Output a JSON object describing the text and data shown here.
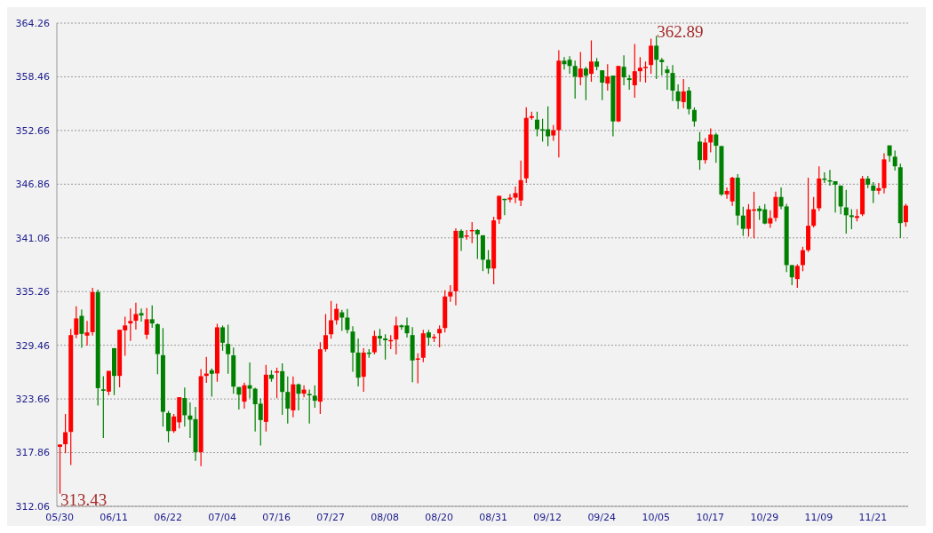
{
  "chart_data": {
    "type": "candlestick",
    "categories": [
      "05/30",
      null,
      null,
      null,
      null,
      null,
      null,
      null,
      null,
      null,
      "06/11",
      null,
      null,
      null,
      null,
      null,
      null,
      null,
      null,
      null,
      "06/22",
      null,
      null,
      null,
      null,
      null,
      null,
      null,
      null,
      null,
      "07/04",
      null,
      null,
      null,
      null,
      null,
      null,
      null,
      null,
      null,
      "07/16",
      null,
      null,
      null,
      null,
      null,
      null,
      null,
      null,
      null,
      "07/27",
      null,
      null,
      null,
      null,
      null,
      null,
      null,
      null,
      null,
      "08/08",
      null,
      null,
      null,
      null,
      null,
      null,
      null,
      null,
      null,
      "08/20",
      null,
      null,
      null,
      null,
      null,
      null,
      null,
      null,
      null,
      "08/31",
      null,
      null,
      null,
      null,
      null,
      null,
      null,
      null,
      null,
      "09/12",
      null,
      null,
      null,
      null,
      null,
      null,
      null,
      null,
      null,
      "09/24",
      null,
      null,
      null,
      null,
      null,
      null,
      null,
      null,
      null,
      "10/05",
      null,
      null,
      null,
      null,
      null,
      null,
      null,
      null,
      null,
      "10/17",
      null,
      null,
      null,
      null,
      null,
      null,
      null,
      null,
      null,
      "10/29",
      null,
      null,
      null,
      null,
      null,
      null,
      null,
      null,
      null,
      "11/09",
      null,
      null,
      null,
      null,
      null,
      null,
      null,
      null,
      null,
      "11/21",
      null,
      null,
      null,
      null,
      null,
      null
    ],
    "ohlc": [
      [
        318.49,
        318.74,
        313.43,
        318.74
      ],
      [
        318.77,
        322.05,
        317.8,
        320.07
      ],
      [
        320.1,
        331.23,
        316.51,
        330.56
      ],
      [
        330.6,
        333.68,
        330.22,
        332.36
      ],
      [
        332.64,
        333.31,
        329.18,
        330.69
      ],
      [
        330.5,
        332.08,
        329.43,
        330.85
      ],
      [
        330.88,
        335.67,
        330.5,
        335.2
      ],
      [
        335.2,
        335.48,
        322.94,
        324.83
      ],
      [
        324.7,
        326.12,
        319.44,
        324.54
      ],
      [
        324.45,
        326.69,
        324.07,
        326.69
      ],
      [
        329.15,
        329.15,
        324.07,
        326.15
      ],
      [
        326.15,
        331.13,
        324.92,
        331.13
      ],
      [
        331.07,
        332.55,
        328.33,
        331.6
      ],
      [
        331.82,
        333.43,
        329.93,
        332.08
      ],
      [
        332.11,
        334.06,
        331.16,
        332.83
      ],
      [
        332.93,
        333.43,
        332.01,
        332.68
      ],
      [
        330.6,
        333.49,
        330.12,
        332.27
      ],
      [
        332.27,
        333.78,
        331.35,
        331.82
      ],
      [
        331.73,
        331.82,
        326.34,
        328.51
      ],
      [
        328.39,
        331.32,
        320.67,
        322.27
      ],
      [
        322.15,
        322.37,
        318.96,
        320.19
      ],
      [
        320.19,
        322.05,
        320.0,
        321.77
      ],
      [
        321.14,
        323.85,
        320.48,
        323.85
      ],
      [
        323.76,
        324.89,
        320.67,
        321.9
      ],
      [
        321.87,
        323.28,
        319.44,
        321.42
      ],
      [
        321.48,
        322.81,
        316.98,
        317.92
      ],
      [
        317.92,
        326.88,
        316.41,
        326.12
      ],
      [
        326.15,
        328.2,
        325.4,
        326.4
      ],
      [
        326.76,
        326.95,
        323.91,
        326.38
      ],
      [
        326.41,
        331.78,
        325.52,
        331.4
      ],
      [
        331.4,
        331.59,
        328.87,
        329.73
      ],
      [
        329.6,
        331.69,
        326.38,
        328.5
      ],
      [
        328.37,
        329.22,
        324.23,
        324.99
      ],
      [
        324.95,
        324.95,
        322.52,
        324.13
      ],
      [
        323.37,
        325.43,
        322.62,
        325.14
      ],
      [
        325.14,
        327.61,
        323.75,
        324.77
      ],
      [
        324.77,
        324.86,
        320.15,
        323.09
      ],
      [
        323.15,
        323.72,
        318.63,
        321.38
      ],
      [
        321.19,
        327.33,
        320.15,
        326.28
      ],
      [
        326.28,
        326.76,
        325.52,
        325.84
      ],
      [
        326.5,
        327.04,
        323.75,
        326.66
      ],
      [
        326.66,
        327.52,
        321.95,
        324.42
      ],
      [
        324.42,
        326.09,
        321.0,
        322.62
      ],
      [
        322.43,
        326.09,
        321.67,
        325.24
      ],
      [
        325.24,
        325.33,
        322.43,
        324.23
      ],
      [
        324.23,
        325.14,
        323.85,
        324.67
      ],
      [
        324.2,
        324.67,
        321.0,
        324.1
      ],
      [
        324.01,
        325.14,
        322.71,
        323.47
      ],
      [
        323.37,
        329.79,
        322.05,
        329.03
      ],
      [
        329.03,
        332.83,
        328.78,
        330.55
      ],
      [
        330.65,
        334.25,
        330.17,
        332.16
      ],
      [
        332.16,
        333.96,
        331.69,
        333.39
      ],
      [
        333.02,
        333.3,
        331.02,
        332.45
      ],
      [
        332.45,
        333.39,
        330.74,
        331.12
      ],
      [
        330.94,
        331.51,
        326.59,
        328.67
      ],
      [
        328.67,
        330.19,
        325.02,
        325.96
      ],
      [
        326.06,
        329.15,
        324.45,
        328.67
      ],
      [
        328.67,
        329.05,
        328.11,
        328.58
      ],
      [
        328.7,
        331.04,
        328.48,
        330.47
      ],
      [
        330.47,
        331.23,
        329.43,
        330.19
      ],
      [
        330.19,
        330.66,
        327.91,
        330.0
      ],
      [
        329.93,
        330.56,
        329.05,
        330.03
      ],
      [
        330.09,
        332.55,
        328.48,
        331.6
      ],
      [
        331.6,
        331.7,
        331.13,
        331.42
      ],
      [
        331.6,
        332.46,
        330.28,
        330.75
      ],
      [
        330.56,
        331.42,
        325.46,
        327.82
      ],
      [
        327.94,
        328.58,
        325.36,
        328.04
      ],
      [
        328.11,
        331.13,
        327.63,
        330.75
      ],
      [
        330.85,
        331.13,
        329.43,
        330.28
      ],
      [
        330.28,
        330.66,
        329.81,
        330.37
      ],
      [
        330.75,
        331.6,
        329.24,
        331.23
      ],
      [
        331.32,
        335.39,
        330.85,
        334.73
      ],
      [
        334.73,
        335.95,
        334.16,
        335.2
      ],
      [
        335.29,
        342.1,
        333.78,
        341.82
      ],
      [
        341.82,
        342.01,
        339.64,
        341.06
      ],
      [
        341.23,
        341.91,
        340.87,
        341.33
      ],
      [
        341.82,
        342.76,
        340.49,
        341.91
      ],
      [
        341.91,
        342.01,
        338.79,
        341.44
      ],
      [
        341.34,
        341.34,
        337.47,
        338.7
      ],
      [
        338.7,
        339.74,
        337.18,
        337.75
      ],
      [
        337.75,
        343.33,
        336.05,
        342.95
      ],
      [
        343.05,
        345.6,
        342.57,
        345.6
      ],
      [
        345.28,
        345.28,
        343.52,
        345.22
      ],
      [
        345.2,
        345.8,
        344.9,
        345.4
      ],
      [
        345.4,
        346.6,
        344.8,
        345.9
      ],
      [
        345.1,
        349.4,
        344.5,
        347.3
      ],
      [
        347.49,
        355.16,
        346.99,
        354.02
      ],
      [
        354.02,
        354.69,
        353.83,
        354.21
      ],
      [
        353.83,
        354.69,
        352.03,
        352.79
      ],
      [
        352.79,
        353.93,
        351.46,
        352.72
      ],
      [
        352.79,
        355.26,
        350.98,
        352.03
      ],
      [
        352.12,
        353.26,
        351.55,
        352.69
      ],
      [
        352.69,
        361.34,
        349.75,
        360.2
      ],
      [
        360.2,
        360.58,
        359.25,
        359.82
      ],
      [
        360.3,
        360.68,
        358.78,
        359.63
      ],
      [
        359.63,
        360.2,
        356.11,
        358.49
      ],
      [
        358.4,
        361.15,
        357.54,
        359.35
      ],
      [
        359.35,
        359.54,
        355.93,
        358.59
      ],
      [
        358.78,
        362.39,
        357.92,
        360.11
      ],
      [
        360.11,
        360.49,
        359.16,
        359.54
      ],
      [
        359.16,
        359.16,
        355.93,
        357.83
      ],
      [
        357.73,
        359.82,
        356.97,
        358.49
      ],
      [
        358.59,
        358.59,
        352.03,
        353.64
      ],
      [
        353.64,
        359.63,
        353.55,
        359.63
      ],
      [
        359.54,
        360.77,
        357.54,
        358.4
      ],
      [
        358.3,
        358.68,
        357.07,
        358.11
      ],
      [
        357.54,
        362.01,
        356.21,
        359.06
      ],
      [
        359.06,
        360.58,
        357.92,
        359.44
      ],
      [
        359.44,
        360.11,
        357.83,
        359.54
      ],
      [
        359.73,
        362.58,
        358.78,
        361.82
      ],
      [
        361.82,
        362.89,
        358.21,
        360.3
      ],
      [
        360.3,
        360.49,
        358.59,
        360.04
      ],
      [
        359.25,
        359.63,
        357.07,
        358.87
      ],
      [
        358.87,
        359.73,
        355.83,
        356.97
      ],
      [
        356.88,
        357.64,
        354.97,
        355.83
      ],
      [
        355.73,
        358.21,
        355.07,
        356.88
      ],
      [
        356.97,
        357.35,
        354.4,
        354.97
      ],
      [
        354.88,
        355.16,
        353.07,
        353.64
      ],
      [
        351.46,
        352.5,
        348.41,
        349.46
      ],
      [
        349.46,
        351.84,
        349.08,
        351.36
      ],
      [
        351.36,
        352.88,
        350.31,
        352.22
      ],
      [
        352.22,
        352.41,
        349.17,
        351.01
      ],
      [
        350.98,
        350.98,
        345.6,
        345.75
      ],
      [
        345.75,
        346.51,
        345.28,
        346.13
      ],
      [
        345.0,
        347.65,
        344.52,
        347.56
      ],
      [
        347.56,
        347.94,
        342.42,
        343.47
      ],
      [
        343.47,
        344.42,
        341.28,
        342.04
      ],
      [
        342.04,
        344.71,
        341.19,
        344.14
      ],
      [
        344.04,
        346.04,
        341.0,
        344.14
      ],
      [
        344.23,
        344.52,
        343.0,
        343.95
      ],
      [
        344.14,
        344.71,
        342.52,
        342.61
      ],
      [
        342.61,
        344.04,
        342.14,
        343.19
      ],
      [
        343.22,
        346.05,
        342.84,
        345.48
      ],
      [
        345.48,
        346.52,
        344.16,
        344.45
      ],
      [
        344.45,
        344.73,
        337.37,
        338.12
      ],
      [
        338.12,
        338.12,
        335.95,
        336.8
      ],
      [
        336.61,
        338.21,
        335.67,
        338.03
      ],
      [
        338.12,
        340.1,
        337.46,
        339.73
      ],
      [
        339.73,
        347.56,
        339.54,
        342.37
      ],
      [
        342.37,
        345.48,
        342.18,
        344.16
      ],
      [
        344.26,
        348.79,
        343.97,
        347.47
      ],
      [
        347.47,
        348.13,
        346.99,
        347.37
      ],
      [
        347.28,
        348.41,
        346.71,
        347.18
      ],
      [
        347.18,
        347.18,
        343.79,
        346.81
      ],
      [
        346.71,
        346.71,
        343.6,
        344.45
      ],
      [
        344.35,
        346.24,
        341.52,
        343.5
      ],
      [
        343.5,
        344.16,
        341.99,
        343.31
      ],
      [
        343.22,
        344.16,
        342.84,
        343.41
      ],
      [
        343.6,
        347.75,
        343.41,
        347.47
      ],
      [
        347.47,
        347.75,
        346.43,
        346.81
      ],
      [
        346.71,
        347.09,
        344.82,
        346.15
      ],
      [
        346.15,
        346.99,
        345.77,
        346.43
      ],
      [
        346.43,
        350.21,
        345.86,
        349.54
      ],
      [
        351.05,
        351.05,
        349.26,
        349.92
      ],
      [
        349.83,
        350.49,
        348.32,
        348.79
      ],
      [
        348.69,
        349.07,
        341.05,
        342.65
      ],
      [
        342.75,
        344.73,
        342.27,
        344.54
      ]
    ],
    "colors": [
      "#ff0000",
      "#ff0000",
      "#ff0000",
      "#ff0000",
      "#008000",
      "#ff0000",
      "#ff0000",
      "#008000",
      "#008000",
      "#ff0000",
      "#008000",
      "#ff0000",
      "#ff0000",
      "#ff0000",
      "#ff0000",
      "#008000",
      "#ff0000",
      "#008000",
      "#008000",
      "#008000",
      "#008000",
      "#ff0000",
      "#ff0000",
      "#008000",
      "#008000",
      "#008000",
      "#ff0000",
      "#ff0000",
      "#008000",
      "#ff0000",
      "#008000",
      "#008000",
      "#008000",
      "#008000",
      "#ff0000",
      "#008000",
      "#008000",
      "#008000",
      "#ff0000",
      "#008000",
      "#ff0000",
      "#008000",
      "#008000",
      "#ff0000",
      "#008000",
      "#ff0000",
      "#008000",
      "#008000",
      "#ff0000",
      "#ff0000",
      "#ff0000",
      "#ff0000",
      "#008000",
      "#008000",
      "#008000",
      "#008000",
      "#ff0000",
      "#008000",
      "#ff0000",
      "#008000",
      "#008000",
      "#ff0000",
      "#ff0000",
      "#008000",
      "#008000",
      "#008000",
      "#ff0000",
      "#ff0000",
      "#008000",
      "#ff0000",
      "#ff0000",
      "#ff0000",
      "#ff0000",
      "#ff0000",
      "#008000",
      "#ff0000",
      "#ff0000",
      "#008000",
      "#008000",
      "#008000",
      "#ff0000",
      "#ff0000",
      "#008000",
      "#ff0000",
      "#ff0000",
      "#ff0000",
      "#ff0000",
      "#ff0000",
      "#008000",
      "#008000",
      "#008000",
      "#ff0000",
      "#ff0000",
      "#008000",
      "#008000",
      "#008000",
      "#ff0000",
      "#008000",
      "#ff0000",
      "#008000",
      "#008000",
      "#ff0000",
      "#008000",
      "#ff0000",
      "#008000",
      "#008000",
      "#ff0000",
      "#ff0000",
      "#ff0000",
      "#ff0000",
      "#008000",
      "#008000",
      "#008000",
      "#008000",
      "#008000",
      "#ff0000",
      "#008000",
      "#008000",
      "#008000",
      "#ff0000",
      "#ff0000",
      "#008000",
      "#008000",
      "#ff0000",
      "#ff0000",
      "#008000",
      "#008000",
      "#ff0000",
      "#ff0000",
      "#008000",
      "#008000",
      "#ff0000",
      "#ff0000",
      "#008000",
      "#008000",
      "#008000",
      "#ff0000",
      "#ff0000",
      "#ff0000",
      "#ff0000",
      "#ff0000",
      "#008000",
      "#008000",
      "#008000",
      "#008000",
      "#008000",
      "#008000",
      "#ff0000",
      "#ff0000",
      "#008000",
      "#008000",
      "#ff0000",
      "#ff0000",
      "#008000",
      "#008000",
      "#008000",
      "#ff0000"
    ],
    "ylim": [
      312.06,
      364.26
    ],
    "yticks": [
      312.06,
      317.86,
      323.66,
      329.46,
      335.26,
      341.06,
      346.86,
      352.66,
      358.46,
      364.26
    ],
    "grid": "y",
    "annotations": [
      {
        "text": "362.89",
        "x": "10/05",
        "y": 362.89
      },
      {
        "text": "313.43",
        "x": "05/30",
        "y": 313.43
      }
    ]
  }
}
